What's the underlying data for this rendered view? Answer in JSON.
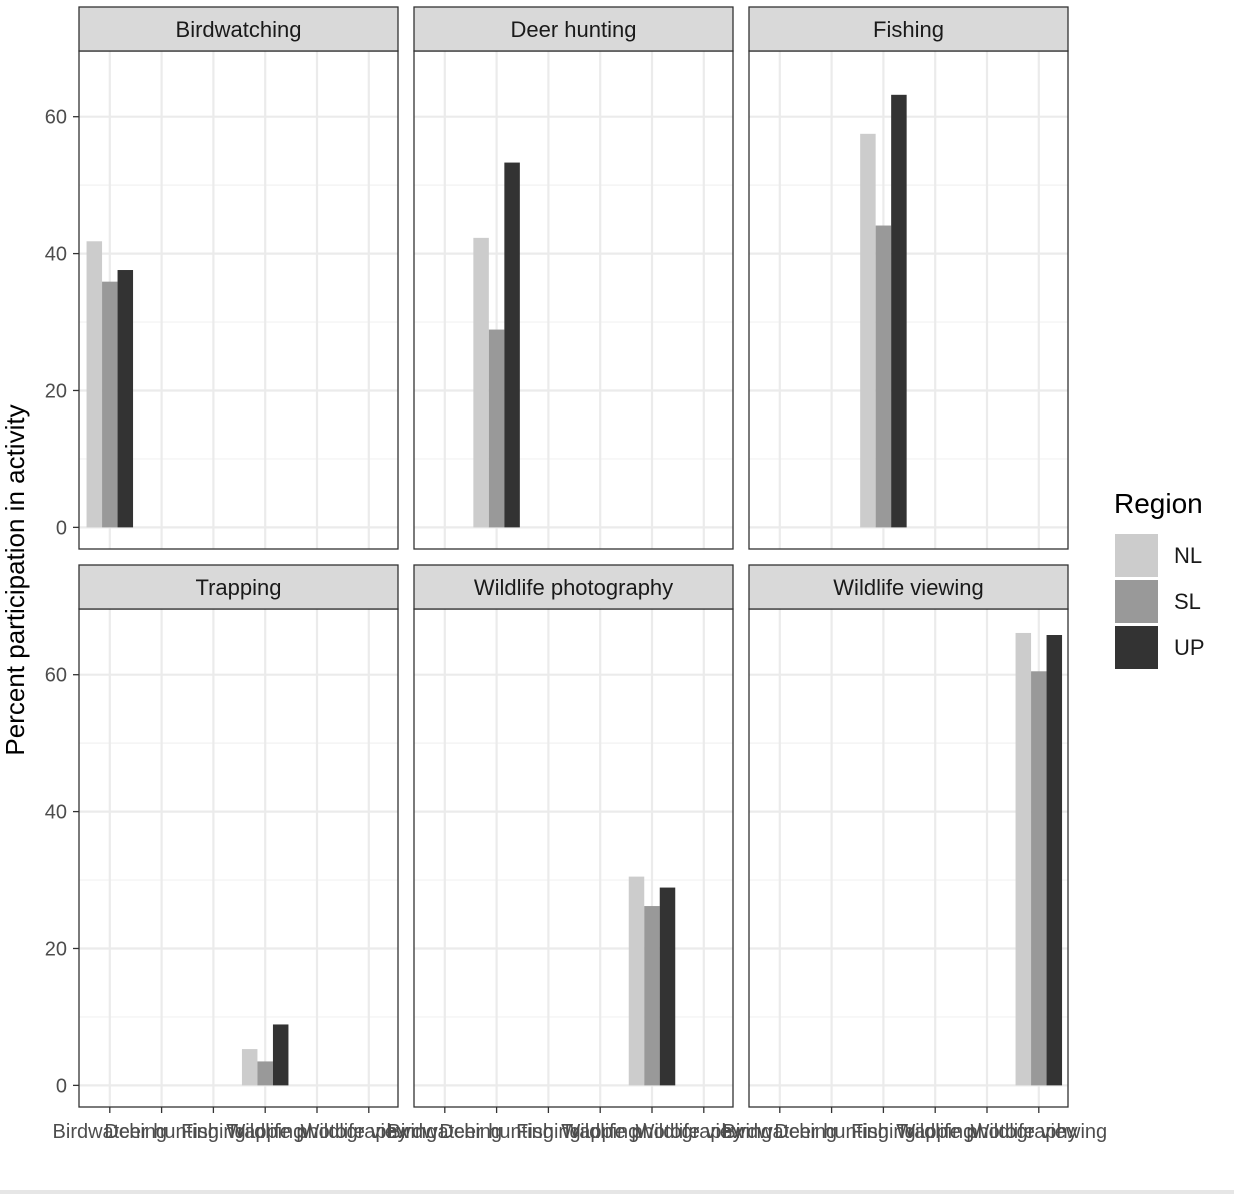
{
  "chart_data": {
    "type": "bar",
    "facet_by": "activity",
    "ylabel": "Percent participation in activity",
    "xlabel": "",
    "ylim": [
      0,
      70
    ],
    "yticks": [
      0,
      20,
      40,
      60
    ],
    "grid": true,
    "legend": {
      "title": "Region",
      "position": "right"
    },
    "categories": [
      "Birdwatching",
      "Deer hunting",
      "Fishing",
      "Trapping",
      "Wildlife photography",
      "Wildlife viewing"
    ],
    "series_colors": {
      "NL": "#cccccc",
      "SL": "#999999",
      "UP": "#333333"
    },
    "panels": [
      {
        "title": "Birdwatching",
        "series": [
          {
            "name": "NL",
            "value": 41.8
          },
          {
            "name": "SL",
            "value": 35.9
          },
          {
            "name": "UP",
            "value": 37.6
          }
        ]
      },
      {
        "title": "Deer hunting",
        "series": [
          {
            "name": "NL",
            "value": 42.3
          },
          {
            "name": "SL",
            "value": 28.9
          },
          {
            "name": "UP",
            "value": 53.3
          }
        ]
      },
      {
        "title": "Fishing",
        "series": [
          {
            "name": "NL",
            "value": 57.5
          },
          {
            "name": "SL",
            "value": 44.1
          },
          {
            "name": "UP",
            "value": 63.2
          }
        ]
      },
      {
        "title": "Trapping",
        "series": [
          {
            "name": "NL",
            "value": 5.3
          },
          {
            "name": "SL",
            "value": 3.5
          },
          {
            "name": "UP",
            "value": 8.9
          }
        ]
      },
      {
        "title": "Wildlife photography",
        "series": [
          {
            "name": "NL",
            "value": 30.5
          },
          {
            "name": "SL",
            "value": 26.2
          },
          {
            "name": "UP",
            "value": 28.9
          }
        ]
      },
      {
        "title": "Wildlife viewing",
        "series": [
          {
            "name": "NL",
            "value": 66.1
          },
          {
            "name": "SL",
            "value": 60.5
          },
          {
            "name": "UP",
            "value": 65.8
          }
        ]
      }
    ]
  }
}
